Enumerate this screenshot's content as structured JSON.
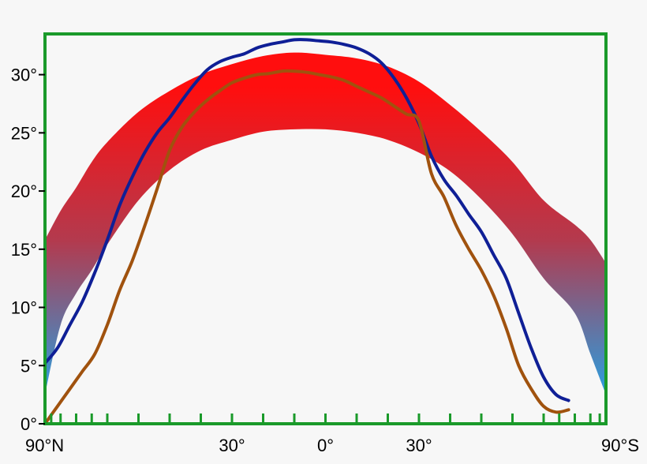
{
  "chart_data": {
    "type": "line",
    "title": "",
    "xlabel": "",
    "ylabel": "",
    "x_reversed_note": "",
    "xlim": [
      90,
      -90
    ],
    "ylim": [
      0,
      33.5
    ],
    "x_ticks": [
      {
        "value": 90,
        "label": "90°N"
      },
      {
        "value": 30,
        "label": "30°"
      },
      {
        "value": 0,
        "label": "0°"
      },
      {
        "value": -30,
        "label": "30°"
      },
      {
        "value": -90,
        "label": "90°S"
      }
    ],
    "x_minor_ticks": [
      90,
      88,
      85,
      80,
      75,
      70,
      60,
      50,
      40,
      30,
      20,
      10,
      0,
      -10,
      -20,
      -30,
      -40,
      -50,
      -60,
      -70,
      -75,
      -80,
      -85,
      -88,
      -90
    ],
    "y_ticks": [
      {
        "value": 0,
        "label": "0°"
      },
      {
        "value": 5,
        "label": "5°"
      },
      {
        "value": 10,
        "label": "10°"
      },
      {
        "value": 15,
        "label": "15°"
      },
      {
        "value": 20,
        "label": "20°"
      },
      {
        "value": 25,
        "label": "25°"
      },
      {
        "value": 30,
        "label": "30°"
      }
    ],
    "band": {
      "colors": {
        "top": "#ff0e0e",
        "middle": "#b33a4e",
        "bottom": "#2a9ee0"
      },
      "upper": [
        [
          90,
          15.8
        ],
        [
          85,
          18.3
        ],
        [
          80,
          20.3
        ],
        [
          75,
          22.5
        ],
        [
          70,
          24.2
        ],
        [
          60,
          26.8
        ],
        [
          50,
          28.6
        ],
        [
          40,
          30.0
        ],
        [
          30,
          30.9
        ],
        [
          20,
          31.6
        ],
        [
          10,
          31.9
        ],
        [
          0,
          31.7
        ],
        [
          -10,
          31.4
        ],
        [
          -20,
          30.7
        ],
        [
          -30,
          29.4
        ],
        [
          -40,
          27.4
        ],
        [
          -50,
          25.1
        ],
        [
          -60,
          22.5
        ],
        [
          -70,
          19.2
        ],
        [
          -80,
          17.1
        ],
        [
          -85,
          15.8
        ],
        [
          -90,
          13.8
        ]
      ],
      "lower": [
        [
          90,
          2.5
        ],
        [
          85,
          8.5
        ],
        [
          80,
          11.2
        ],
        [
          75,
          13.2
        ],
        [
          70,
          15.4
        ],
        [
          60,
          19.2
        ],
        [
          50,
          21.8
        ],
        [
          40,
          23.5
        ],
        [
          30,
          24.4
        ],
        [
          20,
          25.1
        ],
        [
          10,
          25.3
        ],
        [
          0,
          25.3
        ],
        [
          -10,
          25.0
        ],
        [
          -20,
          24.4
        ],
        [
          -30,
          23.3
        ],
        [
          -40,
          21.7
        ],
        [
          -50,
          19.3
        ],
        [
          -60,
          16.3
        ],
        [
          -70,
          12.5
        ],
        [
          -80,
          9.5
        ],
        [
          -85,
          6.0
        ],
        [
          -90,
          2.5
        ]
      ]
    },
    "series": [
      {
        "color": "#0f1f96",
        "points": [
          [
            90,
            5.2
          ],
          [
            86,
            6.5
          ],
          [
            82,
            8.5
          ],
          [
            78,
            10.5
          ],
          [
            74,
            13.0
          ],
          [
            70,
            15.8
          ],
          [
            66,
            18.8
          ],
          [
            62,
            21.2
          ],
          [
            58,
            23.3
          ],
          [
            54,
            25.0
          ],
          [
            50,
            26.3
          ],
          [
            46,
            27.8
          ],
          [
            42,
            29.2
          ],
          [
            38,
            30.4
          ],
          [
            34,
            31.1
          ],
          [
            30,
            31.5
          ],
          [
            26,
            31.8
          ],
          [
            22,
            32.3
          ],
          [
            18,
            32.6
          ],
          [
            14,
            32.8
          ],
          [
            10,
            33.0
          ],
          [
            6,
            33.0
          ],
          [
            2,
            32.9
          ],
          [
            -2,
            32.8
          ],
          [
            -6,
            32.6
          ],
          [
            -10,
            32.3
          ],
          [
            -14,
            31.8
          ],
          [
            -18,
            31.0
          ],
          [
            -22,
            29.7
          ],
          [
            -26,
            28.0
          ],
          [
            -30,
            25.8
          ],
          [
            -34,
            23.0
          ],
          [
            -38,
            21.0
          ],
          [
            -42,
            19.6
          ],
          [
            -46,
            18.0
          ],
          [
            -50,
            16.5
          ],
          [
            -54,
            14.5
          ],
          [
            -58,
            12.5
          ],
          [
            -62,
            9.5
          ],
          [
            -66,
            6.5
          ],
          [
            -70,
            4.0
          ],
          [
            -74,
            2.5
          ],
          [
            -78,
            2.0
          ]
        ]
      },
      {
        "color": "#a0520e",
        "points": [
          [
            90,
            0.0
          ],
          [
            86,
            1.5
          ],
          [
            82,
            3.0
          ],
          [
            78,
            4.5
          ],
          [
            74,
            6.0
          ],
          [
            70,
            8.5
          ],
          [
            66,
            11.5
          ],
          [
            62,
            14.0
          ],
          [
            58,
            17.0
          ],
          [
            54,
            20.2
          ],
          [
            50,
            23.5
          ],
          [
            46,
            25.5
          ],
          [
            42,
            26.8
          ],
          [
            38,
            27.8
          ],
          [
            34,
            28.6
          ],
          [
            30,
            29.3
          ],
          [
            26,
            29.7
          ],
          [
            22,
            30.0
          ],
          [
            18,
            30.1
          ],
          [
            14,
            30.3
          ],
          [
            10,
            30.3
          ],
          [
            6,
            30.2
          ],
          [
            2,
            30.0
          ],
          [
            -2,
            29.8
          ],
          [
            -6,
            29.5
          ],
          [
            -10,
            29.0
          ],
          [
            -14,
            28.5
          ],
          [
            -18,
            28.0
          ],
          [
            -22,
            27.3
          ],
          [
            -26,
            26.6
          ],
          [
            -30,
            26.0
          ],
          [
            -34,
            21.5
          ],
          [
            -38,
            19.5
          ],
          [
            -42,
            17.0
          ],
          [
            -46,
            15.0
          ],
          [
            -50,
            13.2
          ],
          [
            -54,
            11.0
          ],
          [
            -58,
            8.2
          ],
          [
            -62,
            5.0
          ],
          [
            -66,
            3.0
          ],
          [
            -70,
            1.5
          ],
          [
            -74,
            1.0
          ],
          [
            -78,
            1.2
          ]
        ]
      }
    ]
  }
}
